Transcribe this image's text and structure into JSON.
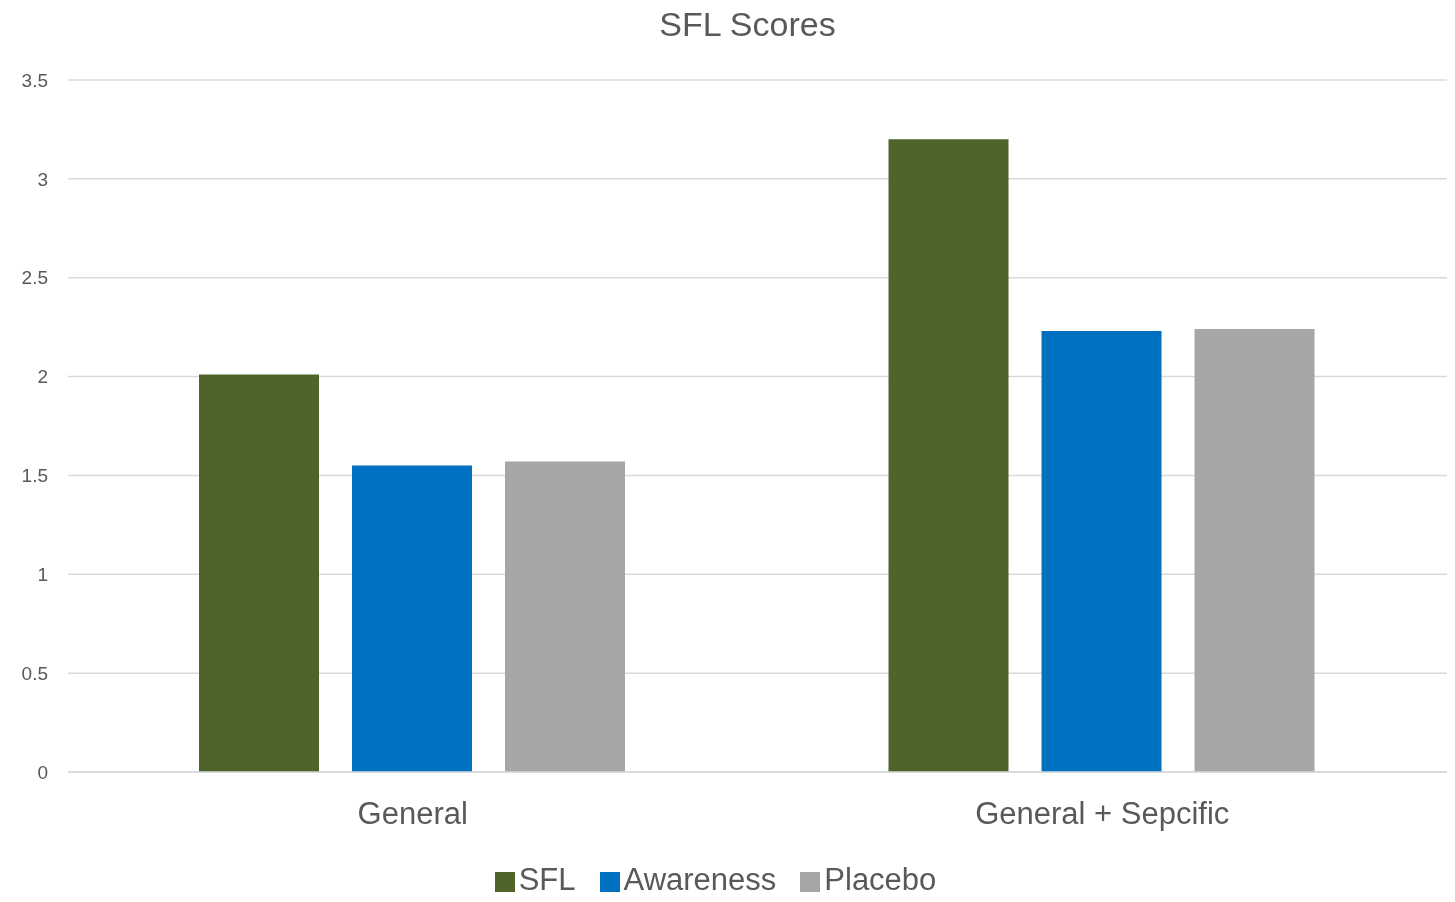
{
  "chart_data": {
    "type": "bar",
    "title": "SFL Scores",
    "categories": [
      "General",
      "General + Sepcific"
    ],
    "series": [
      {
        "name": "SFL",
        "color": "#4e6428",
        "values": [
          2.01,
          3.2
        ]
      },
      {
        "name": "Awareness",
        "color": "#0070c0",
        "values": [
          1.55,
          2.23
        ]
      },
      {
        "name": "Placebo",
        "color": "#a6a6a6",
        "values": [
          1.57,
          2.24
        ]
      }
    ],
    "ylim": [
      0,
      3.5
    ],
    "yticks": [
      0,
      0.5,
      1,
      1.5,
      2,
      2.5,
      3,
      3.5
    ],
    "grid": "y",
    "legend": "bottom"
  }
}
